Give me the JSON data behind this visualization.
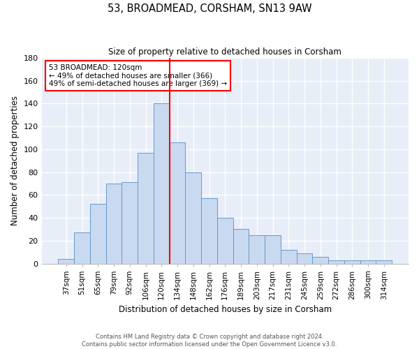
{
  "title": "53, BROADMEAD, CORSHAM, SN13 9AW",
  "subtitle": "Size of property relative to detached houses in Corsham",
  "xlabel": "Distribution of detached houses by size in Corsham",
  "ylabel": "Number of detached properties",
  "bar_color": "#c9d9f0",
  "bar_edge_color": "#6699cc",
  "background_color": "#e8eef8",
  "grid_color": "white",
  "categories": [
    "37sqm",
    "51sqm",
    "65sqm",
    "79sqm",
    "92sqm",
    "106sqm",
    "120sqm",
    "134sqm",
    "148sqm",
    "162sqm",
    "176sqm",
    "189sqm",
    "203sqm",
    "217sqm",
    "231sqm",
    "245sqm",
    "259sqm",
    "272sqm",
    "286sqm",
    "300sqm",
    "314sqm"
  ],
  "bar_values": [
    4,
    27,
    52,
    70,
    71,
    97,
    140,
    106,
    80,
    57,
    40,
    30,
    25,
    25,
    12,
    9,
    6,
    3,
    3,
    3,
    3
  ],
  "vline_idx": 6,
  "vline_color": "red",
  "annotation_text": "53 BROADMEAD: 120sqm\n← 49% of detached houses are smaller (366)\n49% of semi-detached houses are larger (369) →",
  "footnote": "Contains HM Land Registry data © Crown copyright and database right 2024.\nContains public sector information licensed under the Open Government Licence v3.0.",
  "ylim": [
    0,
    180
  ],
  "yticks": [
    0,
    20,
    40,
    60,
    80,
    100,
    120,
    140,
    160,
    180
  ]
}
